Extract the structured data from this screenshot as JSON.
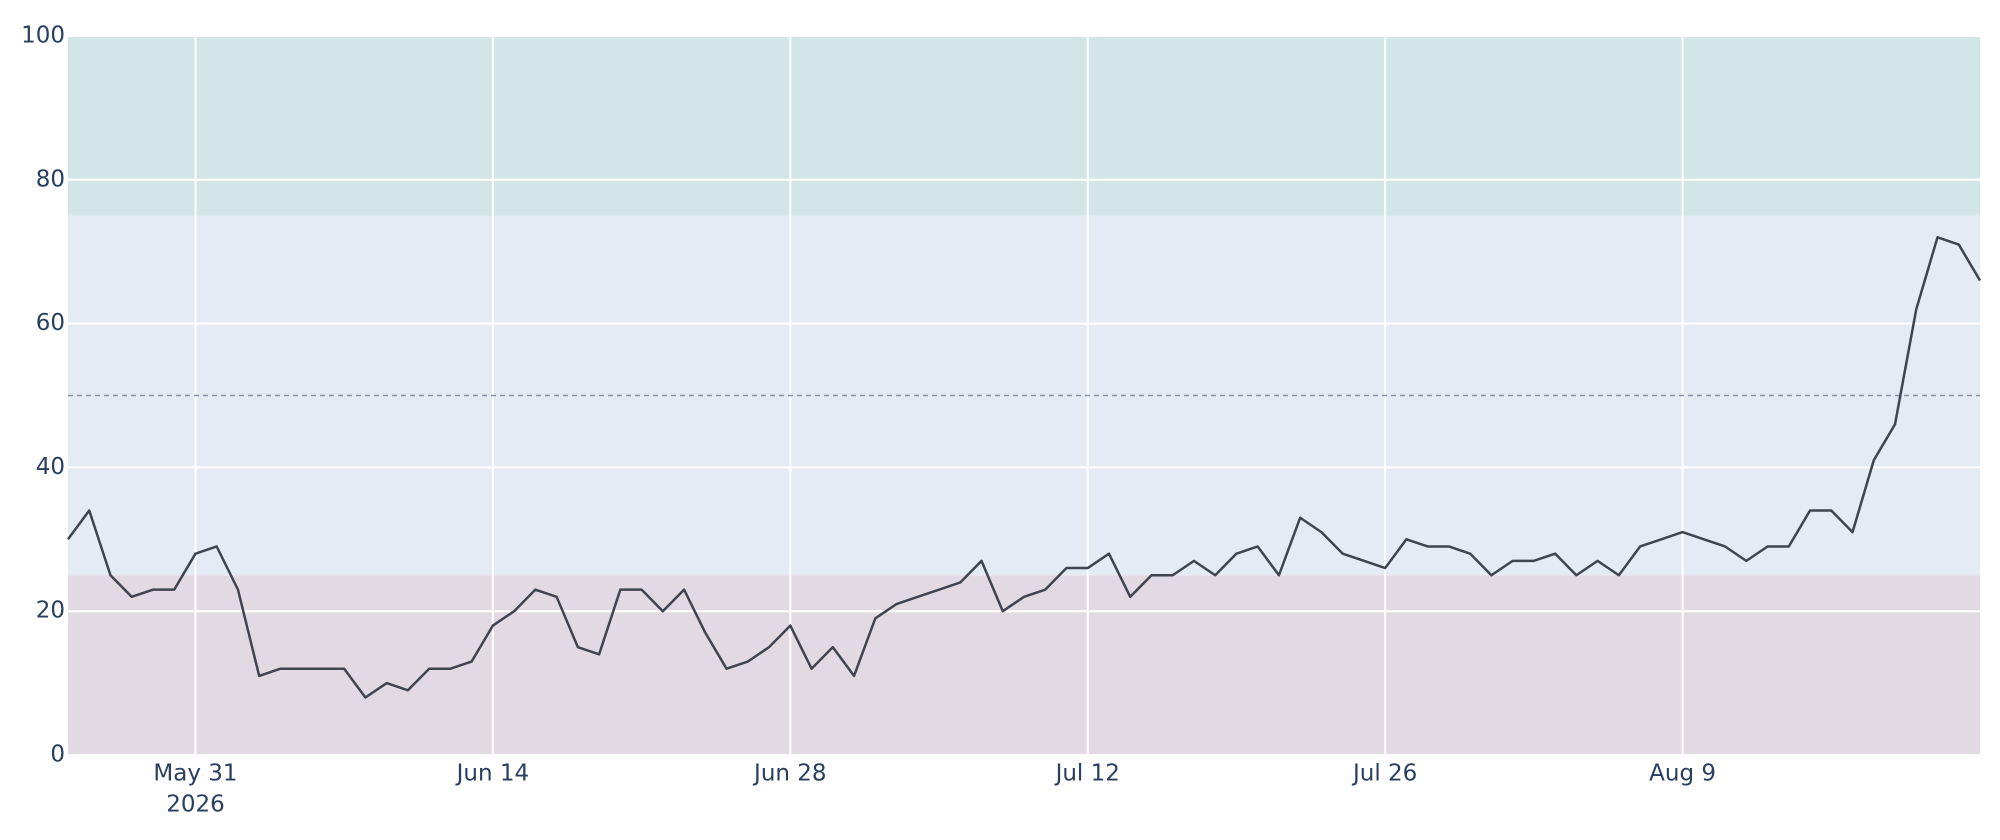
{
  "chart_data": {
    "type": "line",
    "x": [
      "2026-05-25",
      "2026-05-26",
      "2026-05-27",
      "2026-05-28",
      "2026-05-29",
      "2026-05-30",
      "2026-05-31",
      "2026-06-01",
      "2026-06-02",
      "2026-06-03",
      "2026-06-04",
      "2026-06-05",
      "2026-06-06",
      "2026-06-07",
      "2026-06-08",
      "2026-06-09",
      "2026-06-10",
      "2026-06-11",
      "2026-06-12",
      "2026-06-13",
      "2026-06-14",
      "2026-06-15",
      "2026-06-16",
      "2026-06-17",
      "2026-06-18",
      "2026-06-19",
      "2026-06-20",
      "2026-06-21",
      "2026-06-22",
      "2026-06-23",
      "2026-06-24",
      "2026-06-25",
      "2026-06-26",
      "2026-06-27",
      "2026-06-28",
      "2026-06-29",
      "2026-06-30",
      "2026-07-01",
      "2026-07-02",
      "2026-07-03",
      "2026-07-04",
      "2026-07-05",
      "2026-07-06",
      "2026-07-07",
      "2026-07-08",
      "2026-07-09",
      "2026-07-10",
      "2026-07-11",
      "2026-07-12",
      "2026-07-13",
      "2026-07-14",
      "2026-07-15",
      "2026-07-16",
      "2026-07-17",
      "2026-07-18",
      "2026-07-19",
      "2026-07-20",
      "2026-07-21",
      "2026-07-22",
      "2026-07-23",
      "2026-07-24",
      "2026-07-25",
      "2026-07-26",
      "2026-07-27",
      "2026-07-28",
      "2026-07-29",
      "2026-07-30",
      "2026-07-31",
      "2026-08-01",
      "2026-08-02",
      "2026-08-03",
      "2026-08-04",
      "2026-08-05",
      "2026-08-06",
      "2026-08-07",
      "2026-08-08",
      "2026-08-09",
      "2026-08-10",
      "2026-08-11",
      "2026-08-12",
      "2026-08-13",
      "2026-08-14",
      "2026-08-15",
      "2026-08-16",
      "2026-08-17",
      "2026-08-18",
      "2026-08-19",
      "2026-08-20",
      "2026-08-21",
      "2026-08-22",
      "2026-08-23"
    ],
    "series": [
      {
        "color": "#3f4451",
        "values": [
          30,
          34,
          25,
          22,
          23,
          23,
          28,
          29,
          23,
          11,
          12,
          12,
          12,
          12,
          8,
          10,
          9,
          12,
          12,
          13,
          18,
          20,
          23,
          22,
          15,
          14,
          23,
          23,
          20,
          23,
          17,
          12,
          13,
          15,
          18,
          12,
          15,
          11,
          19,
          21,
          22,
          23,
          24,
          27,
          20,
          22,
          23,
          26,
          26,
          28,
          22,
          25,
          25,
          27,
          25,
          28,
          29,
          25,
          33,
          31,
          28,
          27,
          26,
          30,
          29,
          29,
          28,
          25,
          27,
          27,
          28,
          25,
          27,
          25,
          29,
          30,
          31,
          30,
          29,
          27,
          29,
          29,
          34,
          34,
          31,
          41,
          46,
          62,
          72,
          71,
          66
        ]
      }
    ],
    "xlim": [
      "2026-05-25",
      "2026-08-23"
    ],
    "xticks": [
      {
        "value": "2026-05-31",
        "label": "May 31"
      },
      {
        "value": "2026-06-14",
        "label": "Jun 14"
      },
      {
        "value": "2026-06-28",
        "label": "Jun 28"
      },
      {
        "value": "2026-07-12",
        "label": "Jul 12"
      },
      {
        "value": "2026-07-26",
        "label": "Jul 26"
      },
      {
        "value": "2026-08-09",
        "label": "Aug 9"
      }
    ],
    "x_year_label": "2026",
    "ylim": [
      0,
      100
    ],
    "yticks": [
      0,
      20,
      40,
      60,
      80,
      100
    ],
    "grid": true,
    "bands": [
      {
        "from": 0,
        "to": 25,
        "color": "#e2dae3"
      },
      {
        "from": 25,
        "to": 75,
        "color": "#e5ebf5"
      },
      {
        "from": 75,
        "to": 100,
        "color": "#d2e5e7"
      }
    ],
    "reference_line": 50
  }
}
